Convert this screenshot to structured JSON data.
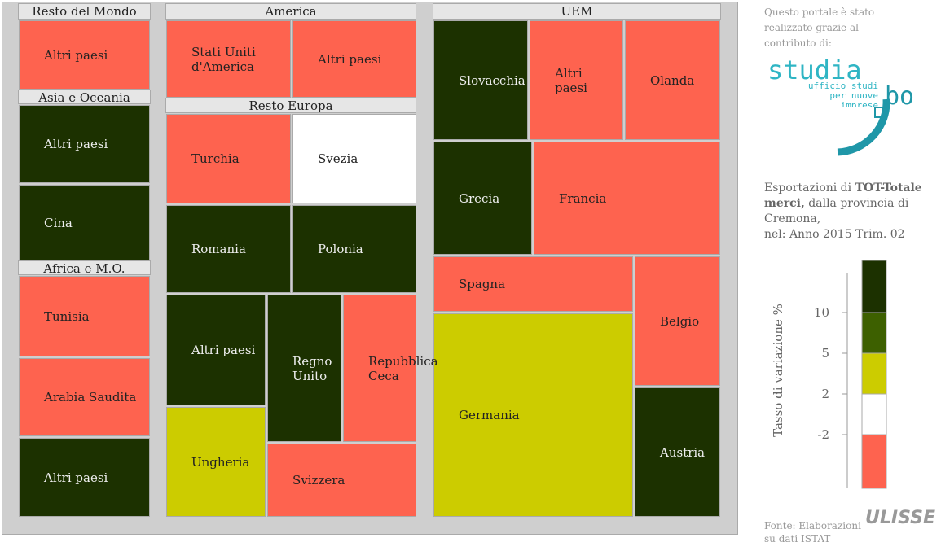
{
  "chart_data": {
    "type": "treemap",
    "groups": [
      {
        "name": "Resto del Mondo",
        "tiles": [
          {
            "label": "Altri paesi",
            "color": "#fe634f"
          }
        ]
      },
      {
        "name": "America",
        "tiles": [
          {
            "label": "Stati Uniti d'America",
            "color": "#fe634f"
          },
          {
            "label": "Altri paesi",
            "color": "#fe634f"
          }
        ]
      },
      {
        "name": "UEM",
        "tiles": [
          {
            "label": "Slovacchia",
            "color": "#1c3100"
          },
          {
            "label": "Altri paesi",
            "color": "#fe634f"
          },
          {
            "label": "Olanda",
            "color": "#fe634f"
          },
          {
            "label": "Grecia",
            "color": "#1c3100"
          },
          {
            "label": "Francia",
            "color": "#fe634f"
          },
          {
            "label": "Spagna",
            "color": "#fe634f"
          },
          {
            "label": "Germania",
            "color": "#cccc00"
          },
          {
            "label": "Belgio",
            "color": "#fe634f"
          },
          {
            "label": "Austria",
            "color": "#1c3100"
          }
        ]
      },
      {
        "name": "Asia e Oceania",
        "tiles": [
          {
            "label": "Altri paesi",
            "color": "#1c3100"
          },
          {
            "label": "Cina",
            "color": "#1c3100"
          }
        ]
      },
      {
        "name": "Resto Europa",
        "tiles": [
          {
            "label": "Turchia",
            "color": "#fe634f"
          },
          {
            "label": "Svezia",
            "color": "#ffffff"
          },
          {
            "label": "Romania",
            "color": "#1c3100"
          },
          {
            "label": "Polonia",
            "color": "#1c3100"
          },
          {
            "label": "Altri paesi",
            "color": "#1c3100"
          },
          {
            "label": "Regno Unito",
            "color": "#1c3100"
          },
          {
            "label": "Repubblica Ceca",
            "color": "#fe634f"
          },
          {
            "label": "Ungheria",
            "color": "#cccc00"
          },
          {
            "label": "Svizzera",
            "color": "#fe634f"
          }
        ]
      },
      {
        "name": "Africa e M.O.",
        "tiles": [
          {
            "label": "Tunisia",
            "color": "#fe634f"
          },
          {
            "label": "Arabia Saudita",
            "color": "#fe634f"
          },
          {
            "label": "Altri paesi",
            "color": "#1c3100"
          }
        ]
      }
    ],
    "legend": {
      "title": "Tasso di variazione %",
      "colors": [
        "#1c3100",
        "#3d6000",
        "#cccc00",
        "#ffffff",
        "#fe634f"
      ],
      "ticks": [
        10,
        5,
        2,
        -2
      ]
    }
  },
  "sidebar": {
    "credit": "Questo portale è stato realizzato grazie al contributo di:",
    "logo_main": "studia",
    "logo_bo": "bo",
    "logo_sub": "ufficio studi per nuove imprese",
    "desc_pre": "Esportazioni di",
    "desc_bold": "TOT-Totale merci,",
    "desc_post": "dalla provincia di Cremona,",
    "desc_period": "nel: Anno 2015 Trim. 02",
    "source": "Fonte: Elaborazioni su dati ISTAT",
    "brand": "ULISSE"
  }
}
